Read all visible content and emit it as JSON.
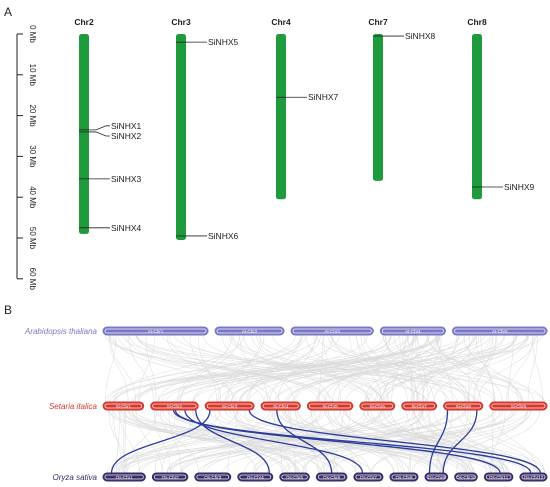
{
  "panel_a": {
    "label": "A",
    "scale_labels": [
      "0 Mb",
      "10 Mb",
      "20 Mb",
      "30 Mb",
      "40 Mb",
      "50 Mb",
      "60 Mb"
    ],
    "scale_max_mb": 60,
    "chromosomes": [
      {
        "name": "Chr2",
        "length_mb": 49,
        "genes": [
          {
            "name": "SiNHX1",
            "pos_mb": 23.5,
            "label_mb": 22.5
          },
          {
            "name": "SiNHX2",
            "pos_mb": 24.0,
            "label_mb": 25.0
          },
          {
            "name": "SiNHX3",
            "pos_mb": 35.5,
            "label_mb": 35.5
          },
          {
            "name": "SiNHX4",
            "pos_mb": 47.5,
            "label_mb": 47.5
          }
        ]
      },
      {
        "name": "Chr3",
        "length_mb": 50.5,
        "genes": [
          {
            "name": "SiNHX5",
            "pos_mb": 2.0,
            "label_mb": 2.0
          },
          {
            "name": "SiNHX6",
            "pos_mb": 49.5,
            "label_mb": 49.5
          }
        ]
      },
      {
        "name": "Chr4",
        "length_mb": 40.5,
        "genes": [
          {
            "name": "SiNHX7",
            "pos_mb": 15.5,
            "label_mb": 15.5
          }
        ]
      },
      {
        "name": "Chr7",
        "length_mb": 36,
        "genes": [
          {
            "name": "SiNHX8",
            "pos_mb": 0.5,
            "label_mb": 0.5
          }
        ]
      },
      {
        "name": "Chr8",
        "length_mb": 40.5,
        "genes": [
          {
            "name": "SiNHX9",
            "pos_mb": 37.5,
            "label_mb": 37.5
          }
        ]
      }
    ],
    "colors": {
      "chromosome": "#1f9b3e"
    }
  },
  "panel_b": {
    "label": "B",
    "species": [
      {
        "name": "Arabidopsis thaliana",
        "color": "#7a78c4",
        "chroms": [
          "At-Chr1",
          "At-Chr2",
          "At-Chr3",
          "At-Chr4",
          "At-Chr5"
        ],
        "rel_lengths": [
          30,
          19.7,
          23.5,
          18.6,
          27
        ]
      },
      {
        "name": "Setaria italica",
        "color": "#d6382e",
        "chroms": [
          "Si-Chr1",
          "Si-Chr2",
          "Si-Chr3",
          "Si-Chr4",
          "Si-Chr5",
          "Si-Chr6",
          "Si-Chr7",
          "Si-Chr8",
          "Si-Chr9"
        ],
        "rel_lengths": [
          42,
          49,
          50.5,
          40.5,
          47,
          36,
          36,
          40.5,
          59
        ]
      },
      {
        "name": "Oryza sativa",
        "color": "#3a2d66",
        "chroms": [
          "Os-Chr1",
          "Os-Chr2",
          "Os-Chr3",
          "Os-Chr4",
          "Os-Chr5",
          "Os-Chr6",
          "Os-Chr7",
          "Os-Chr8",
          "Os-Chr9",
          "Os-Chr10",
          "Os-Chr11",
          "Os-Chr12"
        ],
        "rel_lengths": [
          43,
          36,
          36.5,
          35.5,
          30,
          31,
          29.5,
          28.5,
          23,
          23,
          29,
          27.5
        ]
      }
    ],
    "highlight_links": [
      {
        "from_chrom": "Si-Chr2",
        "from_frac": 0.48,
        "to_chrom": "Os-Chr12",
        "to_frac": 0.4
      },
      {
        "from_chrom": "Si-Chr2",
        "from_frac": 0.52,
        "to_chrom": "Os-Chr11",
        "to_frac": 0.55
      },
      {
        "from_chrom": "Si-Chr2",
        "from_frac": 0.72,
        "to_chrom": "Os-Chr7",
        "to_frac": 0.3
      },
      {
        "from_chrom": "Si-Chr2",
        "from_frac": 0.95,
        "to_chrom": "Os-Chr4",
        "to_frac": 0.9
      },
      {
        "from_chrom": "Si-Chr3",
        "from_frac": 0.1,
        "to_chrom": "Os-Chr1",
        "to_frac": 0.2
      },
      {
        "from_chrom": "Si-Chr3",
        "from_frac": 0.9,
        "to_chrom": "Os-Chr12",
        "to_frac": 0.75
      },
      {
        "from_chrom": "Si-Chr4",
        "from_frac": 0.4,
        "to_chrom": "Os-Chr6",
        "to_frac": 0.5
      },
      {
        "from_chrom": "Si-Chr8",
        "from_frac": 0.1,
        "to_chrom": "Os-Chr9",
        "to_frac": 0.2
      },
      {
        "from_chrom": "Si-Chr8",
        "from_frac": 0.85,
        "to_chrom": "Os-Chr9",
        "to_frac": 0.8
      }
    ],
    "colors": {
      "background_link": "#d9d9d9",
      "highlight_link": "#2a3b9e"
    }
  }
}
